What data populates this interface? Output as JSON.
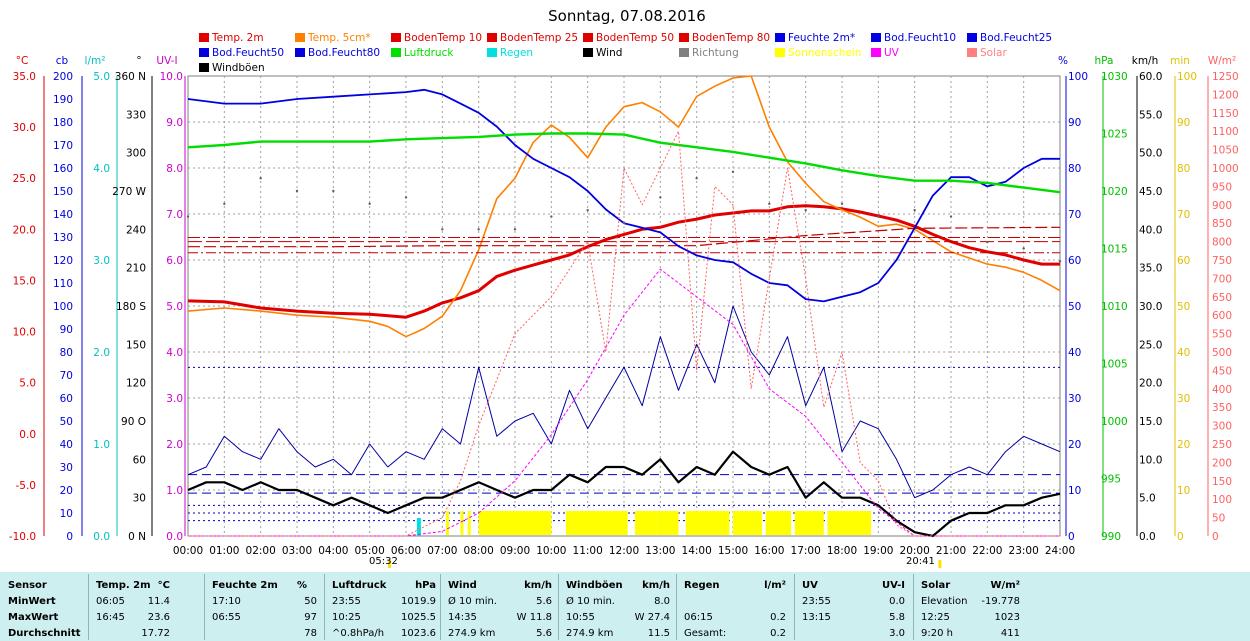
{
  "title": "Sonntag, 07.08.2016",
  "legend": [
    {
      "label": "Temp. 2m",
      "color": "#e00000"
    },
    {
      "label": "Temp. 5cm*",
      "color": "#ff8000"
    },
    {
      "label": "BodenTemp 10",
      "color": "#e00000"
    },
    {
      "label": "BodenTemp 25",
      "color": "#e00000"
    },
    {
      "label": "BodenTemp 50",
      "color": "#e00000"
    },
    {
      "label": "BodenTemp 80",
      "color": "#e00000"
    },
    {
      "label": "Feuchte 2m*",
      "color": "#0000e0"
    },
    {
      "label": "Bod.Feucht10",
      "color": "#0000e0"
    },
    {
      "label": "Bod.Feucht25",
      "color": "#0000e0"
    },
    {
      "label": "Bod.Feucht50",
      "color": "#0000e0"
    },
    {
      "label": "Bod.Feucht80",
      "color": "#0000e0"
    },
    {
      "label": "Luftdruck",
      "color": "#00e000"
    },
    {
      "label": "Regen",
      "color": "#00e0e0"
    },
    {
      "label": "Wind",
      "color": "#000000"
    },
    {
      "label": "Richtung",
      "color": "#808080"
    },
    {
      "label": "Sonnenschein",
      "color": "#ffff00"
    },
    {
      "label": "UV",
      "color": "#ff00ff"
    },
    {
      "label": "Solar",
      "color": "#ff8080"
    },
    {
      "label": "Windböen",
      "color": "#000000"
    }
  ],
  "axis_units": {
    "temp": "°C",
    "cloud": "cb",
    "rain": "l/m²",
    "dir": "°",
    "uv": "UV-I",
    "hum": "%",
    "press": "hPa",
    "wind": "km/h",
    "sun": "min",
    "solar": "W/m²"
  },
  "axis_colors": {
    "temp": "#e00000",
    "cloud": "#0000e0",
    "rain": "#00c0c0",
    "dir": "#000000",
    "uv": "#cc00cc",
    "hum": "#0000e0",
    "press": "#00c000",
    "wind": "#000000",
    "sun": "#e0c000",
    "solar": "#ff6060"
  },
  "left_axes": {
    "temp": [
      "35.0",
      "30.0",
      "25.0",
      "20.0",
      "15.0",
      "10.0",
      "5.0",
      "0.0",
      "-5.0",
      "-10.0"
    ],
    "cloud": [
      "200",
      "190",
      "180",
      "170",
      "160",
      "150",
      "140",
      "130",
      "120",
      "110",
      "100",
      "90",
      "80",
      "70",
      "60",
      "50",
      "40",
      "30",
      "20",
      "10",
      "0"
    ],
    "rain": [
      "5.0",
      "4.0",
      "3.0",
      "2.0",
      "1.0",
      "0.0"
    ],
    "dir": [
      "360 N",
      "330",
      "300",
      "270 W",
      "240",
      "210",
      "180 S",
      "150",
      "120",
      "90  O",
      "60",
      "30",
      "0  N"
    ],
    "uv": [
      "10.0",
      "9.0",
      "8.0",
      "7.0",
      "6.0",
      "5.0",
      "4.0",
      "3.0",
      "2.0",
      "1.0",
      "0.0"
    ]
  },
  "right_axes": {
    "hum": [
      "100",
      "90",
      "80",
      "70",
      "60",
      "50",
      "40",
      "30",
      "20",
      "10",
      "0"
    ],
    "press": [
      "1030",
      "1025",
      "1020",
      "1015",
      "1010",
      "1005",
      "1000",
      "995",
      "990"
    ],
    "wind": [
      "60.0",
      "55.0",
      "50.0",
      "45.0",
      "40.0",
      "35.0",
      "30.0",
      "25.0",
      "20.0",
      "15.0",
      "10.0",
      "5.0",
      "0.0"
    ],
    "sun": [
      "100",
      "90",
      "80",
      "70",
      "60",
      "50",
      "40",
      "30",
      "20",
      "10",
      "0"
    ],
    "solar": [
      "1250",
      "1200",
      "1150",
      "1100",
      "1050",
      "1000",
      "950",
      "900",
      "850",
      "800",
      "750",
      "700",
      "650",
      "600",
      "550",
      "500",
      "450",
      "400",
      "350",
      "300",
      "250",
      "200",
      "150",
      "100",
      "50",
      "0"
    ]
  },
  "x_ticks": [
    "00:00",
    "01:00",
    "02:00",
    "03:00",
    "04:00",
    "05:00",
    "06:00",
    "07:00",
    "08:00",
    "09:00",
    "10:00",
    "11:00",
    "12:00",
    "13:00",
    "14:00",
    "15:00",
    "16:00",
    "17:00",
    "18:00",
    "19:00",
    "20:00",
    "21:00",
    "22:00",
    "23:00",
    "24:00"
  ],
  "sunrise_label": "05:32",
  "sunset_label": "20:41",
  "sunrise_h": 5.53,
  "sunset_h": 20.68,
  "chart_data": {
    "type": "line",
    "title": "Sonntag, 07.08.2016",
    "x_unit": "hour",
    "xlim": [
      0,
      24
    ],
    "series": [
      {
        "name": "Temp. 2m",
        "axis": "temp",
        "ylim": [
          -10,
          35
        ],
        "x": [
          0,
          1,
          2,
          3,
          4,
          5,
          6,
          6.5,
          7,
          7.5,
          8,
          8.5,
          9,
          9.5,
          10,
          10.5,
          11,
          11.5,
          12,
          12.5,
          13,
          13.5,
          14,
          14.5,
          15,
          15.5,
          16,
          16.5,
          17,
          17.5,
          18,
          18.5,
          19,
          19.5,
          20,
          20.5,
          21,
          21.5,
          22,
          22.5,
          23,
          23.5,
          24
        ],
        "y": [
          13,
          12.9,
          12.3,
          12,
          11.8,
          11.7,
          11.4,
          12,
          12.8,
          13.3,
          14,
          15.4,
          16,
          16.5,
          17,
          17.5,
          18.3,
          19,
          19.5,
          20,
          20.2,
          20.7,
          21,
          21.4,
          21.6,
          21.8,
          21.8,
          22.2,
          22.3,
          22.2,
          22,
          21.7,
          21.3,
          20.9,
          20.3,
          19.5,
          18.8,
          18.2,
          17.8,
          17.5,
          17,
          16.6,
          16.6
        ]
      },
      {
        "name": "Temp. 5cm*",
        "axis": "temp",
        "ylim": [
          -10,
          35
        ],
        "x": [
          0,
          1,
          2,
          3,
          4,
          5,
          5.5,
          6,
          6.5,
          7,
          7.5,
          8,
          8.5,
          9,
          9.5,
          10,
          10.5,
          11,
          11.5,
          12,
          12.5,
          13,
          13.5,
          14,
          14.5,
          15,
          15.5,
          16,
          16.5,
          17,
          17.5,
          18,
          18.5,
          19,
          19.5,
          20,
          20.5,
          21,
          21.5,
          22,
          22.5,
          23,
          23.5,
          24
        ],
        "y": [
          12,
          12.3,
          12,
          11.6,
          11.4,
          11,
          10.5,
          9.5,
          10.3,
          11.5,
          14,
          18,
          23,
          25,
          28.5,
          30.2,
          29,
          27,
          30,
          32,
          32.4,
          31.5,
          30,
          33,
          34,
          34.8,
          35,
          30,
          26.6,
          24.5,
          22.7,
          21.9,
          21.2,
          20.3,
          20.5,
          20,
          18.9,
          17.8,
          17.2,
          16.6,
          16.3,
          15.8,
          15,
          14
        ]
      },
      {
        "name": "BodenTemp 10",
        "axis": "temp",
        "ylim": [
          -10,
          35
        ],
        "x": [
          0,
          4,
          7,
          10,
          14,
          17,
          20,
          24
        ],
        "y": [
          18.3,
          18.3,
          18.4,
          18.4,
          18.4,
          19.4,
          20.1,
          20.2
        ]
      },
      {
        "name": "BodenTemp 25",
        "axis": "temp",
        "ylim": [
          -10,
          35
        ],
        "x": [
          0,
          24
        ],
        "y": [
          19.2,
          19.2
        ]
      },
      {
        "name": "BodenTemp 50",
        "axis": "temp",
        "ylim": [
          -10,
          35
        ],
        "x": [
          0,
          24
        ],
        "y": [
          18.8,
          18.8
        ]
      },
      {
        "name": "BodenTemp 80",
        "axis": "temp",
        "ylim": [
          -10,
          35
        ],
        "x": [
          0,
          24
        ],
        "y": [
          17.7,
          17.7
        ]
      },
      {
        "name": "Feuchte 2m*",
        "axis": "hum",
        "ylim": [
          0,
          100
        ],
        "x": [
          0,
          1,
          2,
          3,
          4,
          5,
          6,
          6.5,
          7,
          7.5,
          8,
          8.5,
          9,
          9.5,
          10,
          10.5,
          11,
          11.5,
          12,
          12.5,
          13,
          13.5,
          14,
          14.5,
          15,
          15.5,
          16,
          16.5,
          17,
          17.5,
          18,
          18.5,
          19,
          19.5,
          20,
          20.5,
          21,
          21.5,
          22,
          22.5,
          23,
          23.5,
          24
        ],
        "y": [
          95,
          94,
          94,
          95,
          95.5,
          96,
          96.5,
          97,
          96,
          94,
          92,
          89,
          85,
          82,
          80,
          78,
          75,
          71,
          68,
          67,
          66,
          63,
          61,
          60,
          59.5,
          57,
          55,
          54.5,
          51.5,
          51,
          52,
          53,
          55,
          60,
          67,
          74,
          78,
          78,
          76,
          77,
          80,
          82,
          82
        ]
      },
      {
        "name": "Luftdruck",
        "axis": "press",
        "ylim": [
          990,
          1030
        ],
        "x": [
          0,
          1,
          2,
          3,
          4,
          5,
          6,
          7,
          8,
          9,
          10,
          11,
          12,
          13,
          14,
          15,
          16,
          17,
          18,
          19,
          20,
          21,
          22,
          23,
          24
        ],
        "y": [
          1023.8,
          1024,
          1024.3,
          1024.3,
          1024.3,
          1024.3,
          1024.5,
          1024.6,
          1024.7,
          1024.9,
          1025,
          1025,
          1024.9,
          1024.2,
          1023.8,
          1023.4,
          1022.9,
          1022.4,
          1021.8,
          1021.3,
          1020.9,
          1020.9,
          1020.7,
          1020.3,
          1019.9
        ]
      },
      {
        "name": "Windböen",
        "axis": "wind",
        "ylim": [
          0,
          60
        ],
        "x": [
          0,
          0.5,
          1,
          1.5,
          2,
          2.5,
          3,
          3.5,
          4,
          4.5,
          5,
          5.5,
          6,
          6.5,
          7,
          7.5,
          8,
          8.5,
          9,
          9.5,
          10,
          10.5,
          11,
          11.5,
          12,
          12.5,
          13,
          13.5,
          14,
          14.5,
          15,
          15.5,
          16,
          16.5,
          17,
          17.5,
          18,
          18.5,
          19,
          19.5,
          20,
          20.5,
          21,
          21.5,
          22,
          22.5,
          23,
          23.5,
          24
        ],
        "y": [
          8,
          9,
          13,
          11,
          10,
          14,
          11,
          9,
          10,
          8,
          12,
          9,
          11,
          10,
          14,
          12,
          22,
          13,
          15,
          16,
          12,
          19,
          14,
          18,
          22,
          17,
          26,
          19,
          25,
          20,
          30,
          24,
          21,
          26,
          17,
          22,
          11,
          15,
          14,
          10,
          5,
          6,
          8,
          9,
          8,
          11,
          13,
          12,
          11
        ]
      },
      {
        "name": "Wind",
        "axis": "wind",
        "ylim": [
          0,
          60
        ],
        "x": [
          0,
          0.5,
          1,
          1.5,
          2,
          2.5,
          3,
          3.5,
          4,
          4.5,
          5,
          5.5,
          6,
          6.5,
          7,
          7.5,
          8,
          8.5,
          9,
          9.5,
          10,
          10.5,
          11,
          11.5,
          12,
          12.5,
          13,
          13.5,
          14,
          14.5,
          15,
          15.5,
          16,
          16.5,
          17,
          17.5,
          18,
          18.5,
          19,
          19.5,
          20,
          20.5,
          21,
          21.5,
          22,
          22.5,
          23,
          23.5,
          24
        ],
        "y": [
          6,
          7,
          7,
          6,
          7,
          6,
          6,
          5,
          4,
          5,
          4,
          3,
          4,
          5,
          5,
          6,
          7,
          6,
          5,
          6,
          6,
          8,
          7,
          9,
          9,
          8,
          10,
          7,
          9,
          8,
          11,
          9,
          8,
          9,
          5,
          7,
          5,
          5,
          4,
          2,
          0.5,
          0,
          2,
          3,
          3,
          4,
          4,
          5,
          5.5
        ]
      },
      {
        "name": "UV",
        "axis": "uv",
        "ylim": [
          0,
          10
        ],
        "x": [
          0,
          6,
          7,
          8,
          9,
          10,
          11,
          12,
          13,
          14,
          15,
          16,
          17,
          18,
          19,
          20,
          24
        ],
        "y": [
          0,
          0,
          0.1,
          0.5,
          1.2,
          2.2,
          3.4,
          4.8,
          5.8,
          5.2,
          4.6,
          3.2,
          2.6,
          1.6,
          0.6,
          0,
          0
        ]
      },
      {
        "name": "Solar",
        "axis": "solar",
        "ylim": [
          0,
          1250
        ],
        "x": [
          0,
          6,
          7,
          7.5,
          8,
          9,
          10,
          11,
          11.5,
          12,
          12.5,
          13,
          13.5,
          14,
          14.5,
          15,
          15.5,
          16,
          16.5,
          17,
          17.5,
          18,
          18.5,
          19,
          19.5,
          20,
          24
        ],
        "y": [
          0,
          0,
          50,
          150,
          300,
          550,
          650,
          800,
          500,
          1000,
          900,
          1000,
          1100,
          450,
          950,
          900,
          400,
          700,
          1000,
          700,
          350,
          500,
          200,
          150,
          30,
          0,
          0
        ]
      },
      {
        "name": "Richtung",
        "axis": "dir",
        "ylim": [
          0,
          360
        ],
        "x": [
          0,
          1,
          2,
          3,
          4,
          5,
          6,
          7,
          8,
          9,
          10,
          11,
          12,
          13,
          14,
          15,
          16,
          17,
          18,
          19,
          20,
          21,
          22,
          23,
          24
        ],
        "y": [
          250,
          260,
          280,
          270,
          270,
          260,
          265,
          240,
          240,
          240,
          250,
          255,
          245,
          265,
          280,
          285,
          260,
          255,
          260,
          250,
          255,
          250,
          230,
          225,
          215
        ]
      }
    ],
    "sunshine_periods": [
      [
        8,
        10
      ],
      [
        10.4,
        11.4
      ],
      [
        11.3,
        12.1
      ],
      [
        12.3,
        12.9
      ],
      [
        12.9,
        13.5
      ],
      [
        13.7,
        14.9
      ],
      [
        15.0,
        15.8
      ],
      [
        15.9,
        16.6
      ],
      [
        16.7,
        17.5
      ],
      [
        17.6,
        18.8
      ]
    ],
    "sunshine_dots": [
      7.1,
      7.5,
      7.7
    ],
    "rain": [
      {
        "x": 6.3,
        "value": 0.2
      }
    ],
    "reference_lines": [
      {
        "name": "Windböen Ø 10 min.",
        "axis": "wind",
        "value": 8.0
      },
      {
        "name": "Wind Ø 10 min.",
        "axis": "wind",
        "value": 5.6
      }
    ]
  },
  "stats": {
    "headers": [
      "Sensor",
      "Temp. 2m",
      "°C",
      "Feuchte 2m",
      "%",
      "Luftdruck",
      "hPa",
      "Wind",
      "km/h",
      "Windböen",
      "km/h",
      "Regen",
      "l/m²",
      "UV",
      "UV-I",
      "Solar",
      "W/m²"
    ],
    "rows": [
      {
        "label": "MinWert",
        "cells": [
          "06:05",
          "11.4",
          "17:10",
          "50",
          "23:55",
          "1019.9",
          "Ø 10 min.",
          "5.6",
          "Ø 10 min.",
          "8.0",
          "",
          "",
          "23:55",
          "0.0",
          "Elevation",
          "-19.778"
        ]
      },
      {
        "label": "MaxWert",
        "cells": [
          "16:45",
          "23.6",
          "06:55",
          "97",
          "10:25",
          "1025.5",
          "14:35",
          "W 11.8",
          "10:55",
          "W 27.4",
          "06:15",
          "0.2",
          "13:15",
          "5.8",
          "12:25",
          "1023"
        ]
      },
      {
        "label": "Durchschnitt",
        "cells": [
          "",
          "17.72",
          "",
          "78",
          "^0.8hPa/h",
          "1023.6",
          "274.9 km",
          "5.6",
          "274.9 km",
          "11.5",
          "Gesamt:",
          "0.2",
          "",
          "3.0",
          "9:20 h",
          "411"
        ]
      }
    ]
  }
}
